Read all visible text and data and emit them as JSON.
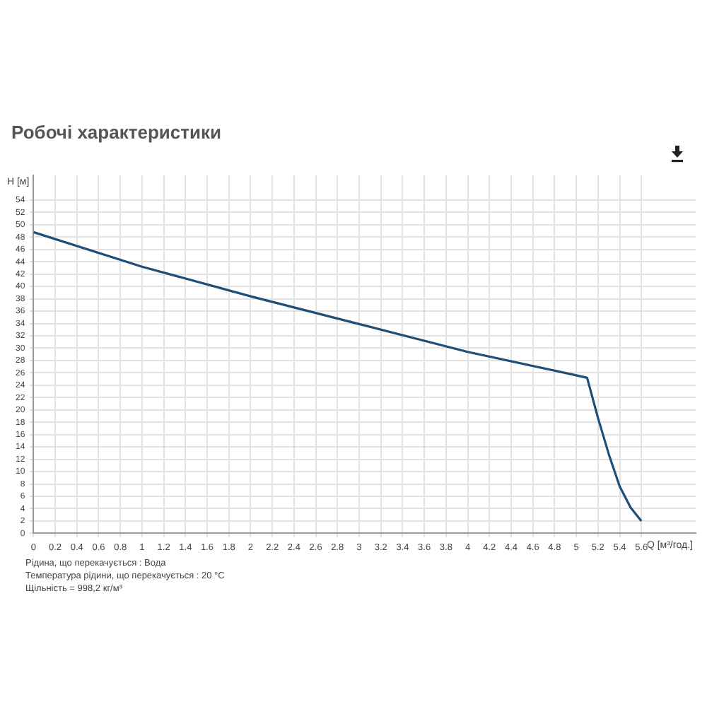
{
  "chart_data": {
    "type": "line",
    "title": "Робочі характеристики",
    "xlabel": "Q [м³/год.]",
    "ylabel": "H [м]",
    "x": [
      0,
      1,
      2,
      3,
      4,
      5,
      5.1,
      5.2,
      5.3,
      5.4,
      5.5,
      5.6
    ],
    "series": [
      {
        "color": "#1f4e79",
        "values": [
          48.8,
          43.2,
          38.4,
          33.9,
          29.4,
          25.6,
          25.2,
          18.7,
          12.8,
          7.6,
          4.2,
          2.0
        ]
      }
    ],
    "xlim": [
      0,
      6.1
    ],
    "xticks": [
      0,
      0.2,
      0.4,
      0.6,
      0.8,
      1.0,
      1.2,
      1.4,
      1.6,
      1.8,
      2.0,
      2.2,
      2.4,
      2.6,
      2.8,
      3.0,
      3.2,
      3.4,
      3.6,
      3.8,
      4.0,
      4.2,
      4.4,
      4.6,
      4.8,
      5.0,
      5.2,
      5.4,
      5.6
    ],
    "ylim": [
      0,
      58
    ],
    "yticks": [
      0,
      2,
      4,
      6,
      8,
      10,
      12,
      14,
      16,
      18,
      20,
      22,
      24,
      26,
      28,
      30,
      32,
      34,
      36,
      38,
      40,
      42,
      44,
      46,
      48,
      50,
      52,
      54
    ],
    "grid": true,
    "legend": false,
    "marker": "none",
    "line_style": "solid",
    "annotations": [
      "Рідина, що перекачується : Вода",
      "Температура рідини, що перекачується : 20 °C",
      "Щільність = 998,2 кг/м³"
    ]
  }
}
